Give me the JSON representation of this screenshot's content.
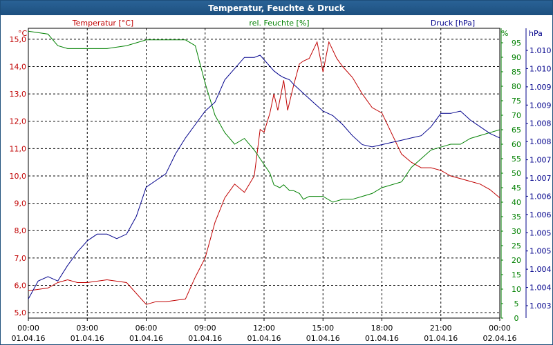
{
  "window": {
    "title": "Temperatur, Feuchte & Druck"
  },
  "colors": {
    "temperature": "#c00000",
    "humidity": "#008000",
    "pressure": "#00008b",
    "grid": "#000000",
    "title_bar": "#1f5485"
  },
  "chart_data": {
    "type": "line",
    "title": "Temperatur, Feuchte & Druck",
    "grid": true,
    "legend_placement": "top",
    "x_ticks": [
      {
        "time": "00:00",
        "date": "01.04.16"
      },
      {
        "time": "03:00",
        "date": "01.04.16"
      },
      {
        "time": "06:00",
        "date": "01.04.16"
      },
      {
        "time": "09:00",
        "date": "01.04.16"
      },
      {
        "time": "12:00",
        "date": "01.04.16"
      },
      {
        "time": "15:00",
        "date": "01.04.16"
      },
      {
        "time": "18:00",
        "date": "01.04.16"
      },
      {
        "time": "21:00",
        "date": "01.04.16"
      },
      {
        "time": "00:00",
        "date": "02.04.16"
      }
    ],
    "x_range_hours": [
      0,
      24
    ],
    "axes": {
      "temperature": {
        "unit": "°C",
        "series_label": "Temperatur [°C]",
        "ylim": [
          4.8,
          15.4
        ],
        "ticks": [
          "5,0",
          "6,0",
          "7,0",
          "8,0",
          "9,0",
          "10,0",
          "11,0",
          "12,0",
          "13,0",
          "14,0",
          "15,0"
        ]
      },
      "humidity": {
        "unit": "%",
        "series_label": "rel. Feuchte [%]",
        "ylim": [
          0,
          100
        ],
        "ticks": [
          "0",
          "5",
          "10",
          "15",
          "20",
          "25",
          "30",
          "35",
          "40",
          "45",
          "50",
          "55",
          "60",
          "65",
          "70",
          "75",
          "80",
          "85",
          "90",
          "95"
        ]
      },
      "pressure": {
        "unit": "hPa",
        "series_label": "Druck [hPa]",
        "ticks": [
          "1.003",
          "1.004",
          "1.004",
          "1.005",
          "1.005",
          "1.006",
          "1.006",
          "1.007",
          "1.007",
          "1.008",
          "1.008",
          "1.009",
          "1.009",
          "1.010",
          "1.010"
        ]
      }
    },
    "series": [
      {
        "name": "Temperatur [°C]",
        "axis": "temperature",
        "x": [
          0,
          1,
          1.5,
          2,
          2.5,
          3,
          4,
          5,
          6,
          6.5,
          7,
          8,
          8.5,
          9,
          9.5,
          10,
          10.5,
          11,
          11.5,
          11.8,
          12,
          12.3,
          12.5,
          12.7,
          13,
          13.2,
          13.5,
          13.8,
          14,
          14.3,
          14.7,
          15,
          15.3,
          15.7,
          16,
          16.5,
          17,
          17.5,
          18,
          19,
          19.5,
          20,
          20.5,
          21,
          21.5,
          22,
          22.5,
          23,
          23.5,
          24
        ],
        "y": [
          5.8,
          5.9,
          6.1,
          6.2,
          6.1,
          6.1,
          6.2,
          6.1,
          5.3,
          5.4,
          5.4,
          5.5,
          6.3,
          7.0,
          8.3,
          9.2,
          9.7,
          9.4,
          10.0,
          11.7,
          11.6,
          12.3,
          13.0,
          12.4,
          13.5,
          12.4,
          13.3,
          14.1,
          14.2,
          14.3,
          14.9,
          13.8,
          14.9,
          14.3,
          14.0,
          13.6,
          13.0,
          12.5,
          12.3,
          10.8,
          10.5,
          10.3,
          10.3,
          10.2,
          10.0,
          9.9,
          9.8,
          9.7,
          9.5,
          9.2
        ]
      },
      {
        "name": "rel. Feuchte [%]",
        "axis": "humidity",
        "x": [
          0,
          1,
          1.5,
          2,
          2.5,
          3,
          4,
          5,
          6,
          6.5,
          7,
          8,
          8.5,
          9,
          9.5,
          10,
          10.5,
          11,
          11.5,
          12,
          12.3,
          12.5,
          12.8,
          13,
          13.3,
          13.5,
          13.8,
          14,
          14.3,
          14.5,
          15,
          15.5,
          16,
          16.5,
          17,
          17.5,
          18,
          19,
          19.5,
          20,
          20.5,
          21,
          21.5,
          22,
          22.5,
          23,
          23.5,
          24
        ],
        "y": [
          99,
          98,
          94,
          93,
          93,
          93,
          93,
          94,
          96,
          96,
          96,
          96,
          94,
          81,
          70,
          64,
          60,
          62,
          58,
          53,
          50,
          46,
          45,
          46,
          44,
          44,
          43,
          41,
          42,
          42,
          42,
          40,
          41,
          41,
          42,
          43,
          45,
          47,
          52,
          55,
          58,
          59,
          60,
          60,
          62,
          63,
          64,
          65
        ]
      },
      {
        "name": "Druck [hPa]",
        "axis": "pressure",
        "x": [
          0,
          0.5,
          1,
          1.5,
          2,
          2.5,
          3,
          3.5,
          4,
          4.5,
          5,
          5.5,
          6,
          6.5,
          7,
          7.5,
          8,
          8.5,
          9,
          9.5,
          10,
          10.5,
          11,
          11.5,
          11.8,
          12,
          12.3,
          12.5,
          12.8,
          13,
          13.3,
          13.5,
          14,
          14.5,
          15,
          15.5,
          16,
          16.5,
          17,
          17.5,
          18,
          18.5,
          19,
          19.5,
          20,
          20.5,
          21,
          21.5,
          22,
          22.5,
          23,
          23.5,
          24
        ],
        "y": [
          3,
          11,
          13,
          11,
          18,
          24,
          29,
          32,
          32,
          30,
          32,
          40,
          53,
          56,
          59,
          68,
          75,
          81,
          87,
          91,
          101,
          106,
          111,
          111,
          112,
          110,
          107,
          105,
          103,
          102,
          101,
          99,
          95,
          91,
          87,
          85,
          81,
          76,
          72,
          71,
          72,
          73,
          74,
          75,
          76,
          80,
          86,
          86,
          87,
          83,
          80,
          77,
          75
        ]
      }
    ]
  }
}
